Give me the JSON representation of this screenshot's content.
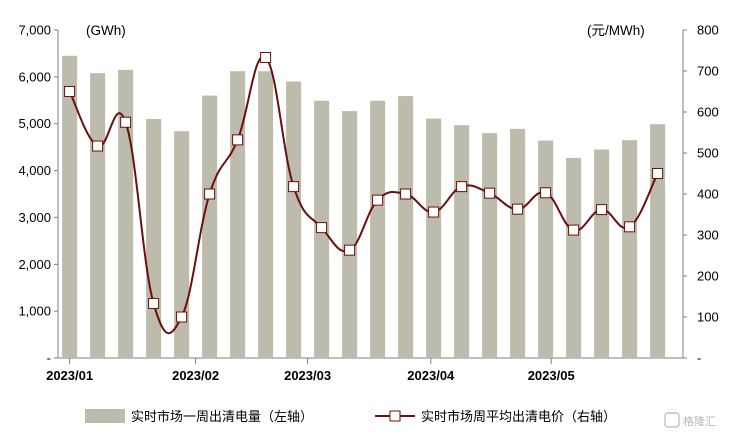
{
  "chart_data": {
    "type": "bar+line",
    "y_left": {
      "unit": "(GWh)",
      "range": [
        0,
        7000
      ],
      "ticks": [
        {
          "value": 0,
          "label": "-"
        },
        {
          "value": 1000,
          "label": "1,000"
        },
        {
          "value": 2000,
          "label": "2,000"
        },
        {
          "value": 3000,
          "label": "3,000"
        },
        {
          "value": 4000,
          "label": "4,000"
        },
        {
          "value": 5000,
          "label": "5,000"
        },
        {
          "value": 6000,
          "label": "6,000"
        },
        {
          "value": 7000,
          "label": "7,000"
        }
      ]
    },
    "y_right": {
      "unit": "(元/MWh)",
      "range": [
        0,
        800
      ],
      "ticks": [
        {
          "value": 0,
          "label": "-"
        },
        {
          "value": 100,
          "label": "100"
        },
        {
          "value": 200,
          "label": "200"
        },
        {
          "value": 300,
          "label": "300"
        },
        {
          "value": 400,
          "label": "400"
        },
        {
          "value": 500,
          "label": "500"
        },
        {
          "value": 600,
          "label": "600"
        },
        {
          "value": 700,
          "label": "700"
        },
        {
          "value": 800,
          "label": "800"
        }
      ]
    },
    "x_labels": [
      {
        "index": 0,
        "label": "2023/01"
      },
      {
        "index": 4.5,
        "label": "2023/02"
      },
      {
        "index": 8.5,
        "label": "2023/03"
      },
      {
        "index": 12.9,
        "label": "2023/04"
      },
      {
        "index": 17.2,
        "label": "2023/05"
      }
    ],
    "series": [
      {
        "name": "实时市场一周出清电量（左轴）",
        "type": "bar",
        "axis": "left",
        "color": "#bdbbab",
        "values": [
          6450,
          6080,
          6150,
          5100,
          4840,
          5600,
          6120,
          6120,
          5900,
          5490,
          5270,
          5490,
          5590,
          5110,
          4970,
          4800,
          4890,
          4640,
          4270,
          4450,
          4650,
          4990
        ]
      },
      {
        "name": "实时市场周平均出清电价（右轴）",
        "type": "line",
        "axis": "right",
        "color": "#6b0f0f",
        "values": [
          650,
          517,
          575,
          133,
          100,
          400,
          532,
          733,
          418,
          318,
          263,
          385,
          400,
          356,
          418,
          402,
          363,
          403,
          312,
          362,
          320,
          450
        ]
      }
    ]
  },
  "legend": {
    "bar_label": "实时市场一周出清电量（左轴）",
    "line_label": "实时市场周平均出清电价（右轴）"
  },
  "watermark": "格隆汇",
  "colors": {
    "bar": "#bdbbab",
    "line": "#6b0f0f",
    "axis": "#7f7f7f"
  }
}
